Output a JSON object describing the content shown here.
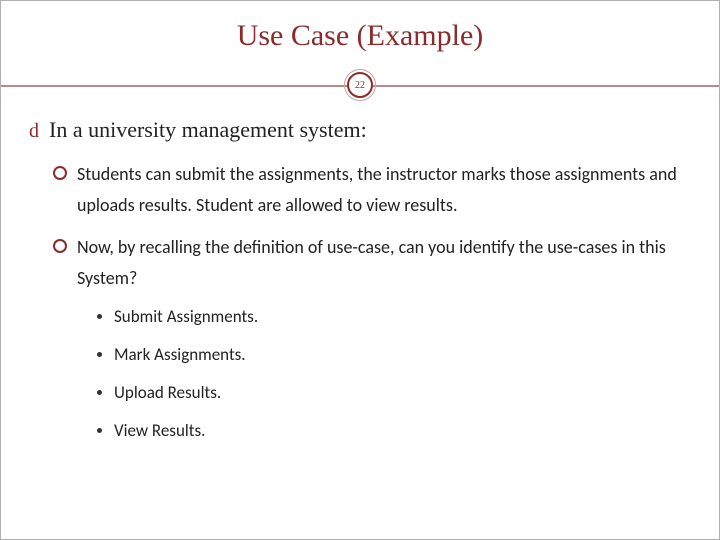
{
  "title": "Use Case (Example)",
  "page_number": "22",
  "colors": {
    "accent": "#8c2b2b",
    "border": "#b0b0b0",
    "rule": "#b98a8a"
  },
  "lvl1": {
    "bullet_glyph": "d",
    "text": "In a university management system:"
  },
  "lvl2": [
    {
      "text": "Students can submit the assignments, the instructor marks those assignments and uploads results. Student are allowed to view results."
    },
    {
      "text": " Now, by recalling the definition of use-case, can you identify the use-cases in this System?"
    }
  ],
  "lvl3": [
    {
      "text": "Submit Assignments."
    },
    {
      "text": "Mark Assignments."
    },
    {
      "text": "Upload Results."
    },
    {
      "text": "View Results."
    }
  ]
}
